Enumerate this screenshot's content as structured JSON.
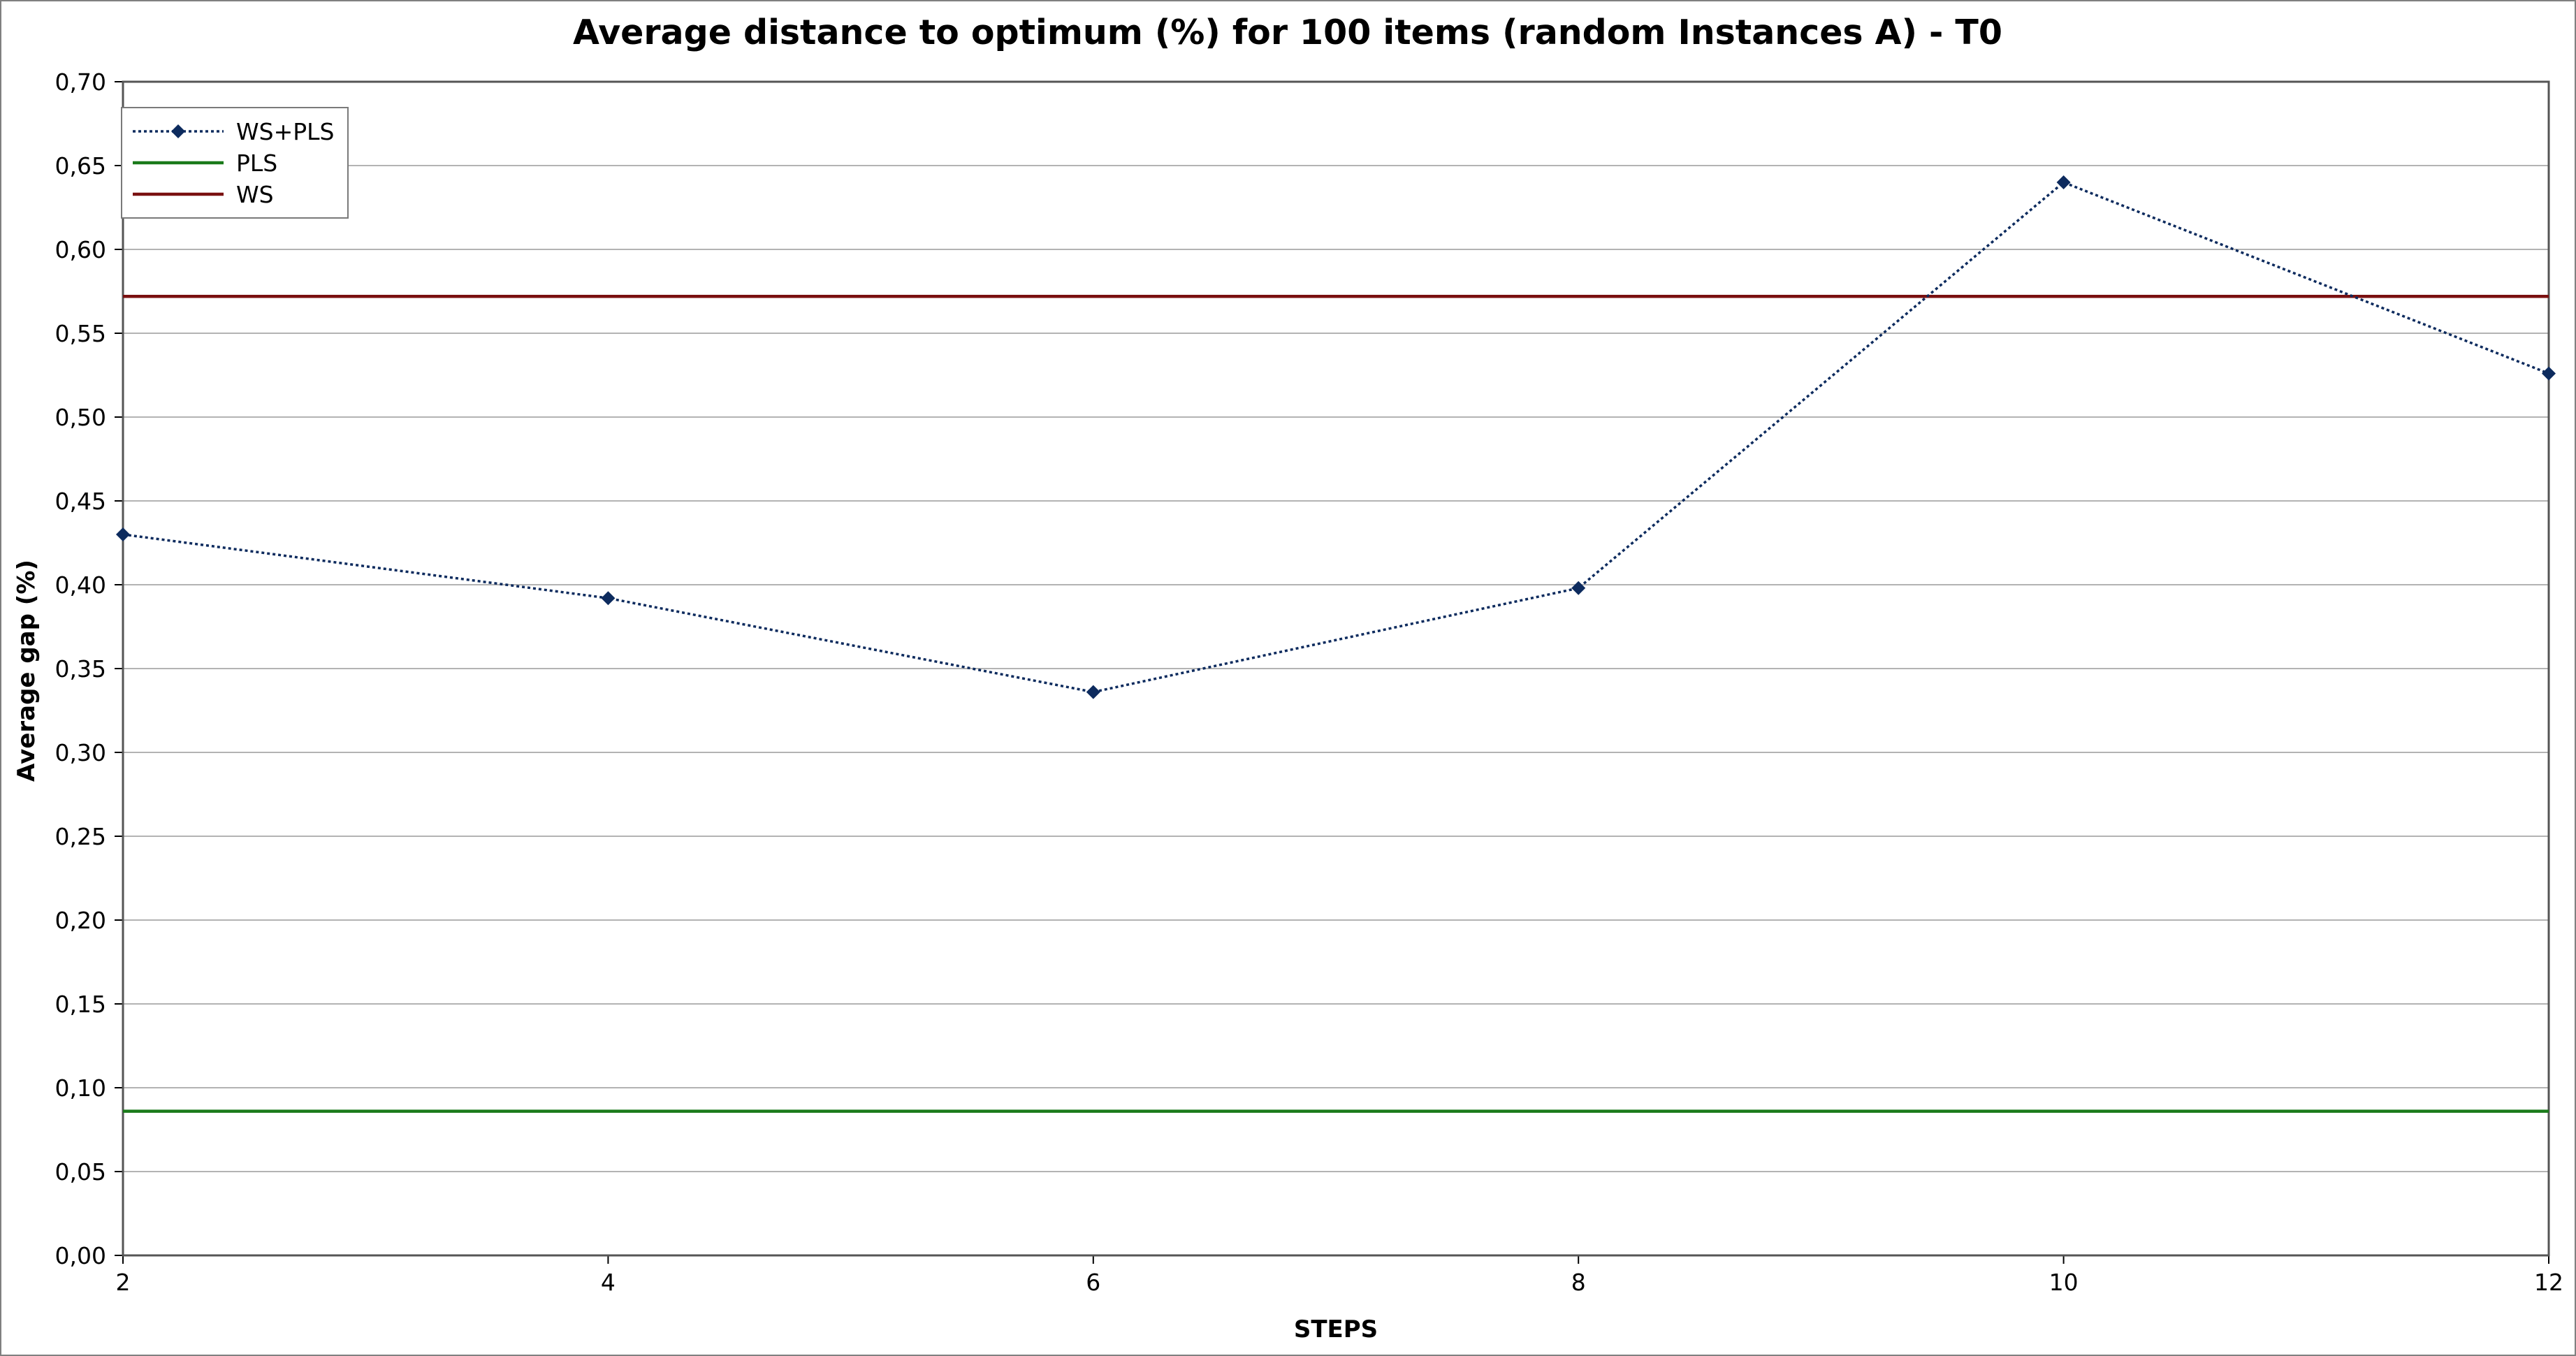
{
  "chart_data": {
    "type": "line",
    "title": "Average distance to optimum (%) for 100 items (random Instances A) - T0",
    "xlabel": "STEPS",
    "ylabel": "Average gap (%)",
    "x": [
      2,
      4,
      6,
      8,
      10,
      12
    ],
    "x_tick_labels": [
      "2",
      "4",
      "6",
      "8",
      "10",
      "12"
    ],
    "xlim": [
      2,
      12
    ],
    "ylim": [
      0,
      0.7
    ],
    "y_ticks": [
      0,
      0.05,
      0.1,
      0.15,
      0.2,
      0.25,
      0.3,
      0.35,
      0.4,
      0.45,
      0.5,
      0.55,
      0.6,
      0.65,
      0.7
    ],
    "y_tick_labels": [
      "0,00",
      "0,05",
      "0,10",
      "0,15",
      "0,20",
      "0,25",
      "0,30",
      "0,35",
      "0,40",
      "0,45",
      "0,50",
      "0,55",
      "0,60",
      "0,65",
      "0,70"
    ],
    "grid": true,
    "legend_position": "top-left",
    "series": [
      {
        "name": "WS+PLS",
        "values": [
          0.43,
          0.392,
          0.336,
          0.398,
          0.64,
          0.526
        ],
        "color": "#0d2b5e",
        "style": "dotted",
        "marker": "diamond"
      },
      {
        "name": "PLS",
        "values": [
          0.086,
          0.086,
          0.086,
          0.086,
          0.086,
          0.086
        ],
        "color": "#1a7a1a",
        "style": "solid",
        "marker": "none"
      },
      {
        "name": "WS",
        "values": [
          0.572,
          0.572,
          0.572,
          0.572,
          0.572,
          0.572
        ],
        "color": "#7a1010",
        "style": "solid",
        "marker": "none"
      }
    ]
  }
}
